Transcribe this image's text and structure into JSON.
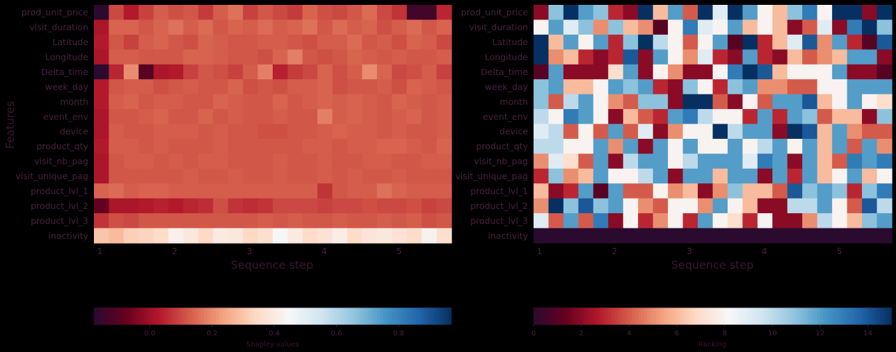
{
  "colors": {
    "background": "#000000",
    "text": "#3a1631",
    "tick_text": "#4a2040",
    "scale_stops": [
      "#2b0a2f",
      "#67001f",
      "#b2182b",
      "#d6604d",
      "#f4a582",
      "#fddbc7",
      "#f7f7f7",
      "#d1e5f0",
      "#92c5de",
      "#4393c3",
      "#2166ac",
      "#053061"
    ]
  },
  "chart_data": [
    {
      "type": "heatmap",
      "title": "",
      "xlabel": "Sequence step",
      "ylabel": "Features",
      "x_tick_labels": [
        "1",
        "2",
        "3",
        "4",
        "5"
      ],
      "x_tick_positions": [
        1,
        2,
        3,
        4,
        5
      ],
      "x_range": [
        0.92,
        5.7
      ],
      "n_columns": 24,
      "y_categories": [
        "prod_unit_price",
        "visit_duration",
        "Latitude",
        "Longitude",
        "Delta_time",
        "week_day",
        "month",
        "event_env",
        "device",
        "product_qty",
        "visit_nb_pag",
        "visit_unique_pag",
        "product_lvl_1",
        "product_lvl_2",
        "product_lvl_3",
        "inactivity"
      ],
      "values": [
        [
          -0.2,
          0.1,
          0.03,
          0.09,
          0.13,
          0.11,
          0.12,
          0.08,
          0.13,
          0.16,
          0.09,
          0.12,
          0.1,
          0.08,
          0.14,
          0.11,
          0.1,
          0.12,
          0.15,
          0.1,
          0.07,
          -0.14,
          -0.14,
          0.05
        ],
        [
          0.02,
          0.14,
          0.14,
          0.12,
          0.14,
          0.16,
          0.13,
          0.15,
          0.12,
          0.14,
          0.13,
          0.15,
          0.13,
          0.14,
          0.16,
          0.12,
          0.15,
          0.13,
          0.14,
          0.11,
          0.13,
          0.15,
          0.12,
          0.14
        ],
        [
          0.03,
          0.12,
          0.09,
          0.13,
          0.14,
          0.12,
          0.11,
          0.14,
          0.13,
          0.12,
          0.12,
          0.13,
          0.13,
          0.12,
          0.11,
          0.13,
          0.13,
          0.15,
          0.12,
          0.13,
          0.11,
          0.14,
          0.13,
          0.1
        ],
        [
          0.02,
          0.13,
          0.13,
          0.12,
          0.12,
          0.12,
          0.14,
          0.14,
          0.13,
          0.12,
          0.12,
          0.11,
          0.14,
          0.18,
          0.12,
          0.11,
          0.12,
          0.14,
          0.13,
          0.12,
          0.13,
          0.12,
          0.12,
          0.13
        ],
        [
          -0.26,
          0.05,
          0.2,
          -0.1,
          0.02,
          0.03,
          0.09,
          0.12,
          0.11,
          0.09,
          0.13,
          0.18,
          0.04,
          0.08,
          0.1,
          0.14,
          0.11,
          0.13,
          0.2,
          0.14,
          0.1,
          0.11,
          0.13,
          0.09
        ],
        [
          0.03,
          0.12,
          0.13,
          0.13,
          0.11,
          0.12,
          0.13,
          0.12,
          0.12,
          0.14,
          0.11,
          0.12,
          0.11,
          0.13,
          0.13,
          0.14,
          0.11,
          0.12,
          0.12,
          0.13,
          0.11,
          0.14,
          0.13,
          0.12
        ],
        [
          0.03,
          0.13,
          0.14,
          0.12,
          0.13,
          0.13,
          0.12,
          0.12,
          0.14,
          0.13,
          0.12,
          0.12,
          0.14,
          0.12,
          0.13,
          0.14,
          0.13,
          0.14,
          0.13,
          0.12,
          0.14,
          0.13,
          0.12,
          0.13
        ],
        [
          0.02,
          0.12,
          0.12,
          0.13,
          0.14,
          0.12,
          0.12,
          0.14,
          0.12,
          0.13,
          0.12,
          0.12,
          0.13,
          0.12,
          0.12,
          0.18,
          0.13,
          0.14,
          0.13,
          0.12,
          0.13,
          0.14,
          0.12,
          0.13
        ],
        [
          0.02,
          0.13,
          0.12,
          0.12,
          0.13,
          0.13,
          0.13,
          0.12,
          0.13,
          0.12,
          0.12,
          0.11,
          0.11,
          0.12,
          0.12,
          0.13,
          0.14,
          0.13,
          0.13,
          0.12,
          0.13,
          0.12,
          0.12,
          0.13
        ],
        [
          0.03,
          0.13,
          0.13,
          0.12,
          0.13,
          0.12,
          0.12,
          0.12,
          0.13,
          0.12,
          0.12,
          0.12,
          0.12,
          0.12,
          0.13,
          0.13,
          0.12,
          0.13,
          0.13,
          0.14,
          0.14,
          0.13,
          0.12,
          0.14
        ],
        [
          0.02,
          0.12,
          0.13,
          0.13,
          0.12,
          0.13,
          0.12,
          0.13,
          0.13,
          0.12,
          0.12,
          0.12,
          0.13,
          0.12,
          0.12,
          0.13,
          0.12,
          0.12,
          0.13,
          0.13,
          0.12,
          0.12,
          0.13,
          0.13
        ],
        [
          0.02,
          0.12,
          0.12,
          0.12,
          0.12,
          0.12,
          0.13,
          0.12,
          0.12,
          0.13,
          0.12,
          0.12,
          0.13,
          0.12,
          0.12,
          0.13,
          0.12,
          0.13,
          0.12,
          0.12,
          0.13,
          0.12,
          0.12,
          0.12
        ],
        [
          0.14,
          0.15,
          0.13,
          0.14,
          0.14,
          0.13,
          0.13,
          0.13,
          0.13,
          0.13,
          0.13,
          0.13,
          0.13,
          0.13,
          0.13,
          0.07,
          0.12,
          0.13,
          0.13,
          0.16,
          0.14,
          0.13,
          0.13,
          0.13
        ],
        [
          -0.08,
          0.02,
          0.02,
          0.03,
          0.04,
          0.03,
          0.05,
          0.06,
          0.11,
          0.07,
          0.06,
          0.07,
          0.1,
          0.1,
          0.1,
          0.09,
          0.1,
          0.1,
          0.11,
          0.1,
          0.1,
          0.11,
          0.09,
          0.1
        ],
        [
          0.07,
          0.11,
          0.1,
          0.12,
          0.12,
          0.12,
          0.12,
          0.12,
          0.12,
          0.12,
          0.12,
          0.13,
          0.12,
          0.13,
          0.12,
          0.12,
          0.13,
          0.12,
          0.12,
          0.13,
          0.12,
          0.13,
          0.11,
          0.12
        ],
        [
          0.3,
          0.28,
          0.32,
          0.33,
          0.35,
          0.42,
          0.39,
          0.34,
          0.4,
          0.39,
          0.34,
          0.36,
          0.45,
          0.4,
          0.35,
          0.37,
          0.41,
          0.35,
          0.38,
          0.39,
          0.37,
          0.35,
          0.43,
          0.36
        ]
      ],
      "colorbar": {
        "label": "Shapley values",
        "range": [
          -0.18,
          0.97
        ],
        "tick_labels": [
          "0.0",
          "0.2",
          "0.4",
          "0.6",
          "0.8"
        ],
        "tick_values": [
          0.0,
          0.2,
          0.4,
          0.6,
          0.8
        ]
      },
      "grid": false
    },
    {
      "type": "heatmap",
      "title": "",
      "xlabel": "Sequence step",
      "ylabel": "",
      "x_tick_labels": [
        "1",
        "2",
        "3",
        "4",
        "5"
      ],
      "x_tick_positions": [
        1,
        2,
        3,
        4,
        5
      ],
      "x_range": [
        0.92,
        5.7
      ],
      "n_columns": 24,
      "y_categories": [
        "prod_unit_price",
        "visit_duration",
        "Latitude",
        "Longitude",
        "Delta_time",
        "week_day",
        "month",
        "event_env",
        "device",
        "product_qty",
        "visit_nb_pag",
        "visit_unique_pag",
        "product_lvl_1",
        "product_lvl_2",
        "product_lvl_3",
        "inactivity"
      ],
      "values": [
        [
          2,
          11,
          15,
          12,
          11,
          3,
          2,
          15,
          6,
          12,
          4,
          15,
          9,
          15,
          12,
          8,
          6,
          11,
          13,
          8,
          15,
          15,
          2,
          15
        ],
        [
          8,
          12,
          9,
          11,
          5,
          11,
          6,
          5,
          1,
          8,
          13,
          9,
          8,
          12,
          6,
          8,
          6,
          2,
          4,
          9,
          2,
          13,
          15,
          11
        ],
        [
          15,
          6,
          12,
          8,
          12,
          3,
          11,
          15,
          10,
          8,
          4,
          8,
          12,
          1,
          15,
          3,
          6,
          9,
          14,
          5,
          12,
          3,
          1,
          14
        ],
        [
          15,
          5,
          6,
          3,
          2,
          3,
          14,
          2,
          12,
          8,
          5,
          9,
          3,
          2,
          12,
          3,
          2,
          6,
          4,
          5,
          6,
          12,
          12,
          2
        ],
        [
          1,
          12,
          2,
          2,
          2,
          7,
          12,
          2,
          8,
          5,
          2,
          2,
          8,
          13,
          15,
          14,
          6,
          8,
          8,
          8,
          12,
          2,
          2,
          1
        ],
        [
          11,
          12,
          6,
          6,
          8,
          12,
          11,
          12,
          3,
          2,
          11,
          8,
          3,
          11,
          12,
          5,
          5,
          4,
          4,
          8,
          8,
          12,
          12,
          12
        ],
        [
          11,
          4,
          10,
          12,
          8,
          5,
          4,
          11,
          11,
          2,
          15,
          15,
          4,
          2,
          8,
          4,
          12,
          12,
          14,
          6,
          8,
          12,
          8,
          7
        ],
        [
          10,
          8,
          13,
          12,
          8,
          2,
          6,
          4,
          3,
          12,
          13,
          10,
          8,
          8,
          3,
          12,
          3,
          12,
          11,
          4,
          6,
          6,
          2,
          11
        ],
        [
          9,
          10,
          4,
          8,
          4,
          12,
          4,
          9,
          2,
          5,
          8,
          8,
          15,
          10,
          12,
          12,
          2,
          15,
          14,
          6,
          12,
          5,
          4,
          4
        ],
        [
          10,
          10,
          8,
          8,
          12,
          5,
          12,
          2,
          12,
          8,
          12,
          8,
          8,
          12,
          8,
          10,
          12,
          8,
          12,
          6,
          12,
          4,
          12,
          5
        ],
        [
          5,
          9,
          7,
          4,
          12,
          2,
          10,
          12,
          12,
          8,
          10,
          12,
          12,
          12,
          9,
          13,
          12,
          2,
          12,
          6,
          4,
          13,
          12,
          13
        ],
        [
          3,
          11,
          5,
          6,
          12,
          8,
          8,
          10,
          12,
          2,
          12,
          12,
          6,
          12,
          12,
          2,
          12,
          3,
          12,
          6,
          8,
          12,
          6,
          8
        ],
        [
          6,
          2,
          3,
          12,
          1,
          12,
          4,
          4,
          8,
          5,
          6,
          2,
          5,
          11,
          6,
          6,
          4,
          14,
          11,
          12,
          11,
          3,
          11,
          13
        ],
        [
          5,
          15,
          11,
          14,
          11,
          12,
          8,
          5,
          4,
          8,
          8,
          5,
          12,
          8,
          6,
          2,
          2,
          10,
          10,
          12,
          8,
          4,
          14,
          10
        ],
        [
          9,
          4,
          12,
          4,
          13,
          2,
          8,
          3,
          5,
          8,
          3,
          12,
          8,
          7,
          3,
          8,
          2,
          2,
          5,
          10,
          8,
          6,
          11,
          12
        ],
        [
          0,
          0,
          0,
          0,
          0,
          0,
          0,
          0,
          0,
          0,
          0,
          0,
          0,
          0,
          0,
          0,
          0,
          0,
          0,
          0,
          0,
          0,
          0,
          0
        ]
      ],
      "colorbar": {
        "label": "Ranking",
        "range": [
          0,
          15
        ],
        "tick_labels": [
          "0",
          "2",
          "4",
          "6",
          "8",
          "10",
          "12",
          "14"
        ],
        "tick_values": [
          0,
          2,
          4,
          6,
          8,
          10,
          12,
          14
        ]
      },
      "grid": false
    }
  ]
}
